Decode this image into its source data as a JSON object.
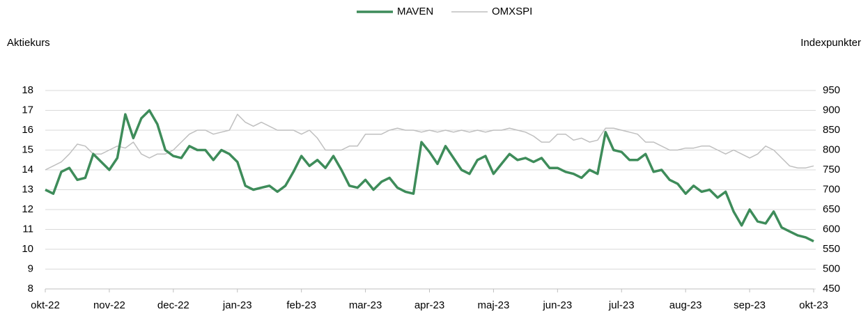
{
  "chart_data": {
    "type": "line",
    "y_label": "Aktiekurs",
    "y2_label": "Indexpunkter",
    "categories": [
      "okt-22",
      null,
      null,
      null,
      null,
      null,
      null,
      null,
      "nov-22",
      null,
      null,
      null,
      null,
      null,
      null,
      null,
      "dec-22",
      null,
      null,
      null,
      null,
      null,
      null,
      null,
      "jan-23",
      null,
      null,
      null,
      null,
      null,
      null,
      null,
      "feb-23",
      null,
      null,
      null,
      null,
      null,
      null,
      null,
      "mar-23",
      null,
      null,
      null,
      null,
      null,
      null,
      null,
      "apr-23",
      null,
      null,
      null,
      null,
      null,
      null,
      null,
      "maj-23",
      null,
      null,
      null,
      null,
      null,
      null,
      null,
      "jun-23",
      null,
      null,
      null,
      null,
      null,
      null,
      null,
      "jul-23",
      null,
      null,
      null,
      null,
      null,
      null,
      null,
      "aug-23",
      null,
      null,
      null,
      null,
      null,
      null,
      null,
      "sep-23",
      null,
      null,
      null,
      null,
      null,
      null,
      null,
      "okt-23"
    ],
    "series": [
      {
        "name": "MAVEN",
        "color": "#3e8c5a",
        "values": [
          13.0,
          12.8,
          13.9,
          14.1,
          13.5,
          13.6,
          14.8,
          14.4,
          14.0,
          14.6,
          16.8,
          15.6,
          16.6,
          17.0,
          16.3,
          15.0,
          14.7,
          14.6,
          15.2,
          15.0,
          15.0,
          14.5,
          15.0,
          14.8,
          14.4,
          13.2,
          13.0,
          13.1,
          13.2,
          12.9,
          13.2,
          13.9,
          14.7,
          14.2,
          14.5,
          14.1,
          14.7,
          14.0,
          13.2,
          13.1,
          13.5,
          13.0,
          13.4,
          13.6,
          13.1,
          12.9,
          12.8,
          15.4,
          14.9,
          14.3,
          15.2,
          14.6,
          14.0,
          13.8,
          14.5,
          14.7,
          13.8,
          14.3,
          14.8,
          14.5,
          14.6,
          14.4,
          14.6,
          14.1,
          14.1,
          13.9,
          13.8,
          13.6,
          14.0,
          13.8,
          15.9,
          15.0,
          14.9,
          14.5,
          14.5,
          14.8,
          13.9,
          14.0,
          13.5,
          13.3,
          12.8,
          13.2,
          12.9,
          13.0,
          12.6,
          12.9,
          11.9,
          11.2,
          12.0,
          11.4,
          11.3,
          11.9,
          11.1,
          10.9,
          10.7,
          10.6,
          10.4
        ]
      },
      {
        "name": "OMXSPI",
        "color": "#bfbfbf",
        "axis": "y2",
        "values": [
          750,
          760,
          770,
          790,
          815,
          810,
          790,
          790,
          800,
          810,
          805,
          820,
          790,
          780,
          790,
          790,
          800,
          820,
          840,
          850,
          850,
          840,
          845,
          850,
          890,
          870,
          860,
          870,
          860,
          850,
          850,
          850,
          840,
          850,
          830,
          800,
          800,
          800,
          810,
          810,
          840,
          840,
          840,
          850,
          855,
          850,
          850,
          845,
          850,
          845,
          850,
          845,
          850,
          845,
          850,
          845,
          850,
          850,
          855,
          850,
          845,
          835,
          820,
          820,
          840,
          840,
          825,
          830,
          820,
          825,
          855,
          855,
          850,
          845,
          840,
          820,
          820,
          810,
          800,
          800,
          805,
          805,
          810,
          810,
          800,
          790,
          800,
          790,
          780,
          790,
          810,
          800,
          780,
          760,
          755,
          755,
          760
        ]
      }
    ],
    "ylim": [
      8,
      18
    ],
    "yticks": [
      8,
      9,
      10,
      11,
      12,
      13,
      14,
      15,
      16,
      17,
      18
    ],
    "y2lim": [
      450,
      950
    ],
    "y2ticks": [
      450,
      500,
      550,
      600,
      650,
      700,
      750,
      800,
      850,
      900,
      950
    ],
    "grid": true,
    "legend": "top"
  }
}
